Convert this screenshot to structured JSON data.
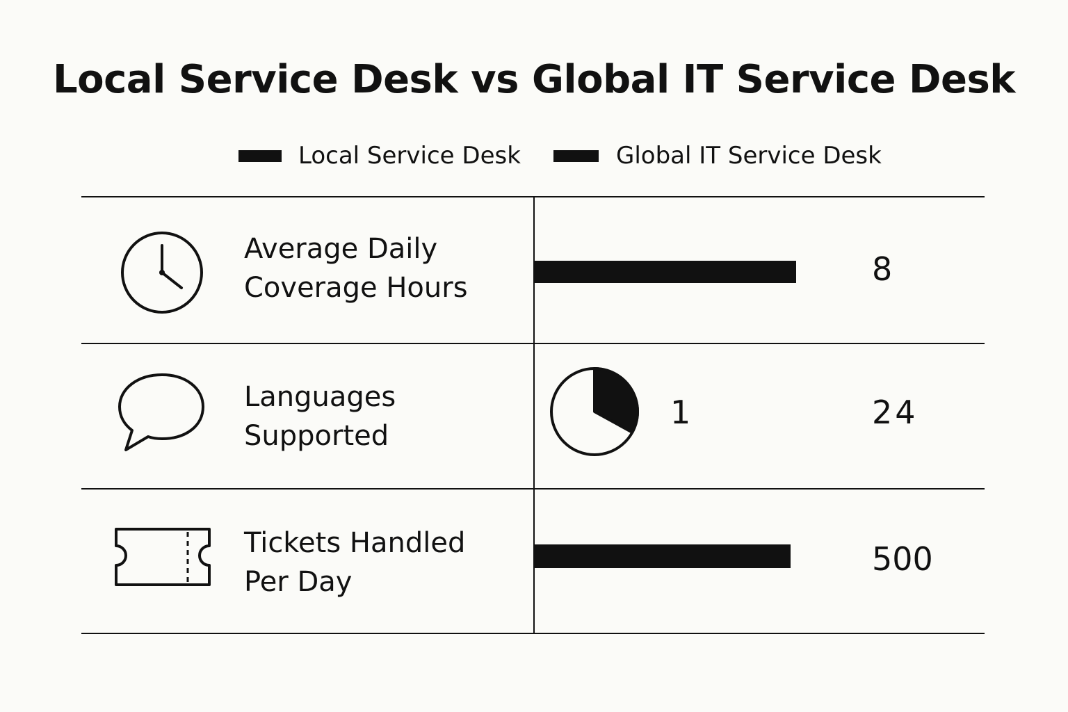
{
  "chart_data": {
    "type": "table",
    "title": "Local Service Desk vs Global IT Service Desk",
    "legend": {
      "placement": "top-center",
      "entries": [
        "Local Service Desk",
        "Global IT Service Desk"
      ]
    },
    "rows": [
      {
        "label_line1": "Average Daily",
        "label_line2": "Coverage Hours",
        "icon": "clock-icon",
        "local_value": "",
        "global_value": "8",
        "visual": "bar",
        "bar_fraction": 0.5
      },
      {
        "label_line1": "Languages",
        "label_line2": "Supported",
        "icon": "speech-bubble-icon",
        "local_value": "1",
        "global_value": "24",
        "visual": "pie",
        "pie_fraction": 0.33
      },
      {
        "label_line1": "Tickets Handled",
        "label_line2": "Per Day",
        "icon": "ticket-icon",
        "local_value": "",
        "global_value": "500",
        "visual": "bar",
        "bar_fraction": 0.49
      }
    ]
  },
  "colors": {
    "ink": "#111111",
    "background": "#fbfbf8"
  }
}
